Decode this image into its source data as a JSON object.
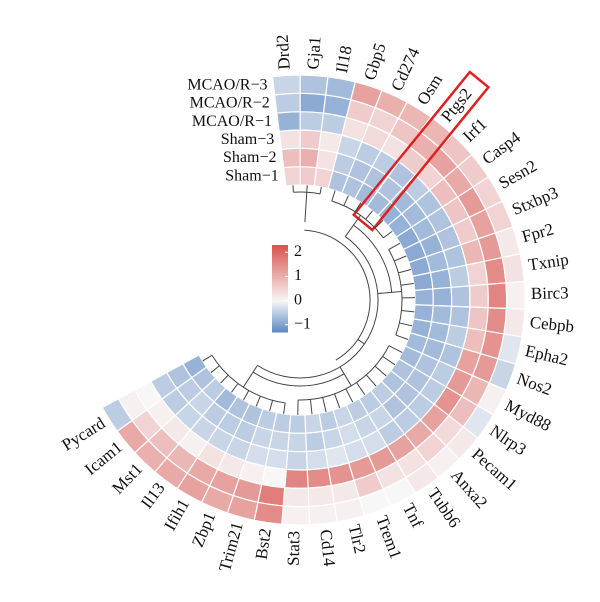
{
  "chart_data": {
    "type": "circular-heatmap",
    "categories": [
      "Drd2",
      "Gja1",
      "Il18",
      "Gbp5",
      "Cd274",
      "Osm",
      "Ptgs2",
      "Irf1",
      "Casp4",
      "Sesn2",
      "Stxbp3",
      "Fpr2",
      "Txnip",
      "Birc3",
      "Cebpb",
      "Epha2",
      "Nos2",
      "Myd88",
      "Nlrp3",
      "Pecam1",
      "Anxa2",
      "Tubb6",
      "Tnf",
      "Trem1",
      "Tlr2",
      "Cd14",
      "Stat3",
      "Bst2",
      "Trim21",
      "Zbp1",
      "Ifih1",
      "Il13",
      "Mst1",
      "Icam1",
      "Pycard"
    ],
    "series": [
      {
        "name": "Sham−1",
        "values": [
          0.5,
          0.6,
          0.5,
          -0.6,
          -0.6,
          -0.7,
          -0.7,
          -0.8,
          -0.8,
          -0.9,
          -0.9,
          -0.9,
          -0.9,
          -0.8,
          -0.8,
          -0.8,
          -0.7,
          -0.7,
          -0.6,
          -0.6,
          -0.5,
          -0.5,
          -0.5,
          -0.4,
          -0.5,
          -0.4,
          -0.5,
          -0.5,
          -0.5,
          -0.6,
          -0.6,
          -0.7,
          -0.5,
          -0.6,
          -0.8
        ]
      },
      {
        "name": "Sham−2",
        "values": [
          0.8,
          1.0,
          0.3,
          -0.5,
          -0.6,
          -0.6,
          -0.6,
          -0.7,
          -0.7,
          -0.7,
          -0.8,
          -0.7,
          -0.8,
          -0.8,
          -0.7,
          -0.7,
          -0.7,
          -0.6,
          -0.6,
          -0.6,
          -0.6,
          -0.4,
          -0.4,
          -0.3,
          -0.4,
          -0.5,
          -0.4,
          -0.4,
          -0.4,
          -0.5,
          -0.5,
          -0.5,
          -0.4,
          -0.5,
          -0.6
        ]
      },
      {
        "name": "Sham−3",
        "values": [
          0.3,
          0.6,
          0.2,
          -0.4,
          -0.5,
          -0.5,
          -0.6,
          -0.5,
          -0.6,
          -0.6,
          -0.6,
          -0.6,
          -0.5,
          -0.6,
          -0.6,
          -0.5,
          -0.6,
          -0.5,
          -0.5,
          -0.5,
          -0.5,
          -0.5,
          -0.3,
          -0.3,
          -0.2,
          -0.3,
          -0.4,
          -0.3,
          -0.3,
          -0.4,
          -0.4,
          -0.4,
          -0.4,
          -0.5,
          -0.5
        ]
      },
      {
        "name": "MCAO/R−1",
        "values": [
          -0.8,
          -0.5,
          -0.5,
          0.3,
          0.4,
          0.3,
          0.6,
          0.5,
          0.8,
          0.7,
          0.6,
          0.9,
          0.5,
          0.6,
          0.7,
          0.8,
          1.2,
          1.3,
          1.4,
          1.2,
          1.1,
          1.2,
          1.3,
          1.3,
          1.4,
          1.5,
          1.6,
          0.0,
          0.1,
          0.2,
          0.3,
          0.1,
          0.2,
          0.1,
          0.0
        ]
      },
      {
        "name": "MCAO/R−2",
        "values": [
          -0.5,
          -0.9,
          -0.8,
          0.6,
          0.5,
          0.7,
          1.0,
          1.2,
          1.1,
          1.3,
          1.2,
          1.3,
          1.5,
          1.6,
          1.5,
          1.4,
          1.3,
          0.9,
          0.8,
          0.4,
          0.5,
          0.3,
          0.3,
          0.6,
          0.2,
          0.2,
          0.2,
          1.7,
          1.3,
          1.2,
          1.1,
          0.9,
          0.8,
          0.5,
          0.1
        ]
      },
      {
        "name": "MCAO/R−3",
        "values": [
          -0.4,
          -0.6,
          -0.7,
          1.2,
          1.0,
          0.9,
          0.9,
          0.7,
          0.6,
          0.5,
          0.5,
          0.2,
          0.3,
          0.1,
          0.2,
          -0.2,
          -0.4,
          0.1,
          -0.2,
          0.2,
          0.1,
          0.2,
          0.0,
          0.0,
          0.1,
          0.1,
          0.1,
          1.5,
          1.2,
          1.1,
          1.2,
          1.1,
          1.0,
          1.1,
          -0.5
        ]
      }
    ],
    "clim": [
      -1.3,
      2.3
    ],
    "colors": [
      "#5b87c3",
      "#f7f7f7",
      "#d9534f"
    ],
    "colorbar_ticks": [
      2,
      1,
      0,
      {
        "value": -1,
        "label": "−1"
      }
    ],
    "highlight": "Ptgs2"
  }
}
